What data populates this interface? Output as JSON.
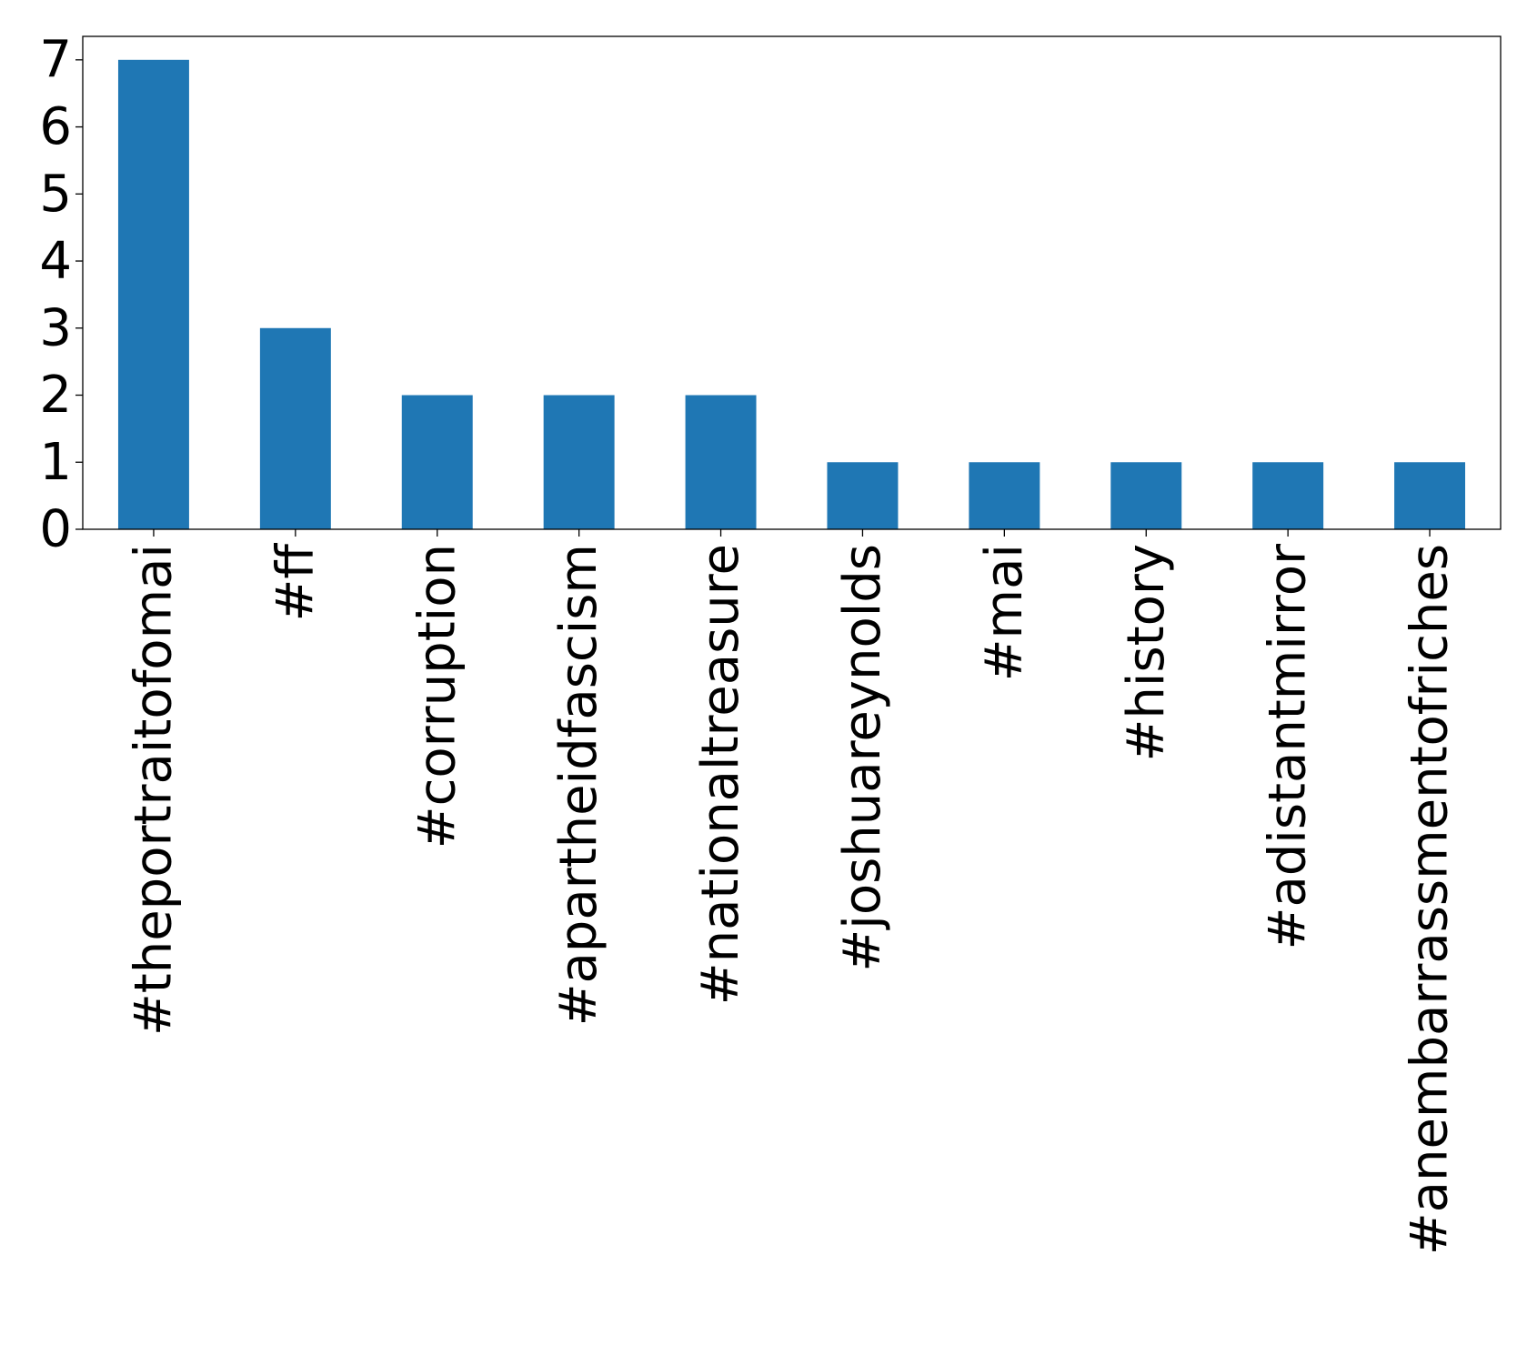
{
  "chart_data": {
    "type": "bar",
    "title": "",
    "xlabel": "",
    "ylabel": "",
    "categories": [
      "#theportraitofomai",
      "#ff",
      "#corruption",
      "#apartheidfascism",
      "#nationaltreasure",
      "#joshuareynolds",
      "#mai",
      "#history",
      "#adistantmirror",
      "#anembarrassmentofriches"
    ],
    "values": [
      7,
      3,
      2,
      2,
      2,
      1,
      1,
      1,
      1,
      1
    ],
    "ylim": [
      0,
      7.35
    ],
    "yticks": [
      0,
      1,
      2,
      3,
      4,
      5,
      6,
      7
    ],
    "bar_color": "#1f77b4",
    "grid": false,
    "legend": "none"
  }
}
